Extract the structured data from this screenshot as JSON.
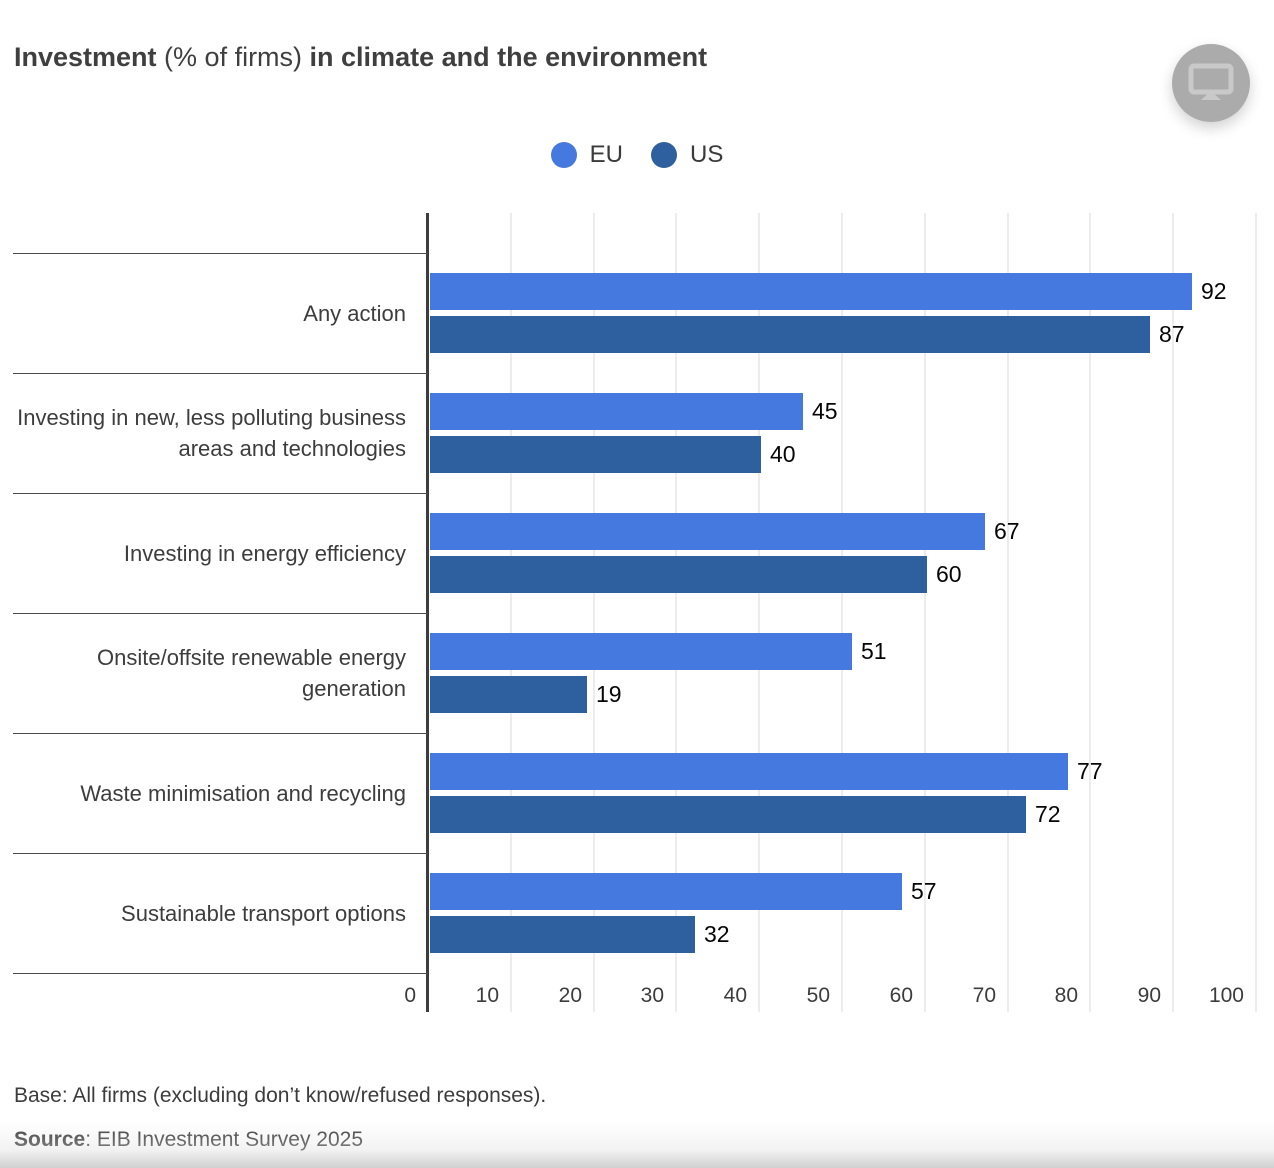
{
  "title": {
    "bold1": "Investment",
    "normal": " (% of firms) ",
    "bold2": "in climate and the environment"
  },
  "icons": {
    "header_button": "monitor-icon"
  },
  "legend": {
    "items": [
      {
        "label": "EU",
        "color": "#4679E0"
      },
      {
        "label": "US",
        "color": "#2E5F9E"
      }
    ]
  },
  "chart_data": {
    "type": "bar",
    "orientation": "horizontal",
    "title": "Investment (% of firms) in climate and the environment",
    "categories": [
      "Any action",
      "Investing in new, less polluting business areas and technologies",
      "Investing in energy efficiency",
      "Onsite/offsite renewable energy generation",
      "Waste minimisation and recycling",
      "Sustainable transport options"
    ],
    "series": [
      {
        "name": "EU",
        "color": "#4679E0",
        "values": [
          92,
          45,
          67,
          51,
          77,
          57
        ]
      },
      {
        "name": "US",
        "color": "#2E5F9E",
        "values": [
          87,
          40,
          60,
          19,
          72,
          32
        ]
      }
    ],
    "x_axis": {
      "range": [
        0,
        100
      ],
      "ticks": [
        0,
        10,
        20,
        30,
        40,
        50,
        60,
        70,
        80,
        90,
        100
      ]
    },
    "grid": true,
    "legend_position": "top",
    "value_labels": true
  },
  "footer": {
    "base": "Base: All firms (excluding don’t know/refused responses).",
    "source_label": "Source",
    "source_text": ": EIB Investment Survey 2025"
  }
}
